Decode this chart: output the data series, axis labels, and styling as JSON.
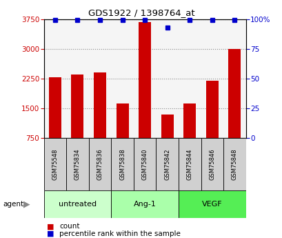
{
  "title": "GDS1922 / 1398764_at",
  "samples": [
    "GSM75548",
    "GSM75834",
    "GSM75836",
    "GSM75838",
    "GSM75840",
    "GSM75842",
    "GSM75844",
    "GSM75846",
    "GSM75848"
  ],
  "counts": [
    2280,
    2350,
    2410,
    1620,
    3680,
    1350,
    1620,
    2200,
    3000
  ],
  "percentile_ranks": [
    99,
    99,
    99,
    99,
    99,
    93,
    99,
    99,
    99
  ],
  "groups": [
    {
      "label": "untreated",
      "indices": [
        0,
        1,
        2
      ],
      "color": "#ccffcc"
    },
    {
      "label": "Ang-1",
      "indices": [
        3,
        4,
        5
      ],
      "color": "#aaffaa"
    },
    {
      "label": "VEGF",
      "indices": [
        6,
        7,
        8
      ],
      "color": "#55ee55"
    }
  ],
  "bar_color": "#cc0000",
  "dot_color": "#0000cc",
  "ylim_left": [
    750,
    3750
  ],
  "ylim_right": [
    0,
    100
  ],
  "yticks_left": [
    750,
    1500,
    2250,
    3000,
    3750
  ],
  "yticks_right": [
    0,
    25,
    50,
    75,
    100
  ],
  "grid_color": "#888888",
  "bar_width": 0.55,
  "left_color": "#cc0000",
  "right_color": "#0000cc",
  "sample_box_color": "#d0d0d0",
  "plot_bg_color": "#f5f5f5"
}
